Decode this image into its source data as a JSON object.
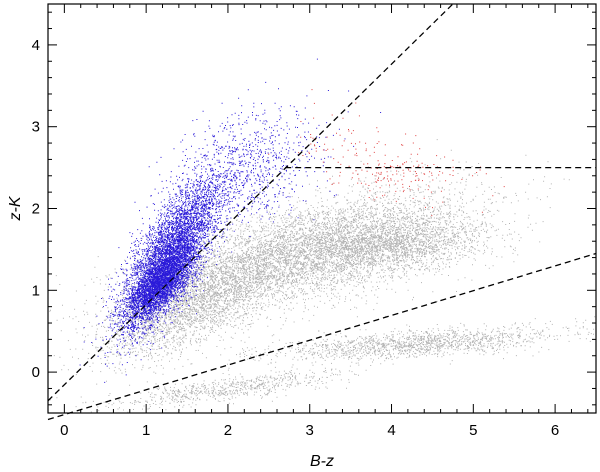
{
  "chart_data": {
    "type": "scatter",
    "title": "",
    "xlabel": "B-z",
    "ylabel": "z-K",
    "xlim": [
      -0.2,
      6.5
    ],
    "ylim": [
      -0.5,
      4.5
    ],
    "x_ticks": [
      "0",
      "1",
      "2",
      "3",
      "4",
      "5",
      "6"
    ],
    "x_tick_values": [
      0,
      1,
      2,
      3,
      4,
      5,
      6
    ],
    "y_ticks": [
      "0",
      "1",
      "2",
      "3",
      "4"
    ],
    "y_tick_values": [
      0,
      1,
      2,
      3,
      4
    ],
    "grid": false,
    "series": [
      {
        "color": "#b3b3b3",
        "clusters": [
          {
            "cx": 2.9,
            "cy": 1.45,
            "sx": 1.0,
            "sy": 0.38,
            "rho": 0.65,
            "n": 5500
          },
          {
            "cx": 1.6,
            "cy": 0.85,
            "sx": 0.55,
            "sy": 0.35,
            "rho": 0.7,
            "n": 2500
          },
          {
            "cx": 4.0,
            "cy": 1.55,
            "sx": 0.6,
            "sy": 0.18,
            "rho": 0.3,
            "n": 2000
          },
          {
            "cx": 4.3,
            "cy": 0.35,
            "sx": 0.9,
            "sy": 0.1,
            "rho": 0.6,
            "n": 1500
          },
          {
            "cx": 2.0,
            "cy": -0.2,
            "sx": 0.7,
            "sy": 0.12,
            "rho": 0.8,
            "n": 700
          }
        ]
      },
      {
        "color": "#2a1ad9",
        "clusters": [
          {
            "cx": 1.3,
            "cy": 1.45,
            "sx": 0.3,
            "sy": 0.45,
            "rho": 0.75,
            "n": 5000
          },
          {
            "cx": 1.15,
            "cy": 1.05,
            "sx": 0.2,
            "sy": 0.22,
            "rho": 0.7,
            "n": 2500
          },
          {
            "cx": 2.2,
            "cy": 2.5,
            "sx": 0.45,
            "sy": 0.35,
            "rho": 0.3,
            "n": 900
          }
        ]
      },
      {
        "color": "#e04040",
        "clusters": [
          {
            "cx": 4.1,
            "cy": 2.45,
            "sx": 0.45,
            "sy": 0.17,
            "rho": 0.0,
            "n": 170
          },
          {
            "cx": 3.3,
            "cy": 2.8,
            "sx": 0.3,
            "sy": 0.2,
            "rho": 0.0,
            "n": 50
          }
        ]
      }
    ],
    "lines": [
      {
        "name": "upper-diagonal",
        "x": [
          -0.2,
          4.75
        ],
        "y": [
          -0.35,
          4.5
        ]
      },
      {
        "name": "horizontal-cut",
        "x": [
          2.7,
          6.5
        ],
        "y": [
          2.5,
          2.5
        ]
      },
      {
        "name": "lower-diagonal",
        "x": [
          -0.2,
          6.5
        ],
        "y": [
          -0.58,
          1.45
        ]
      }
    ]
  }
}
